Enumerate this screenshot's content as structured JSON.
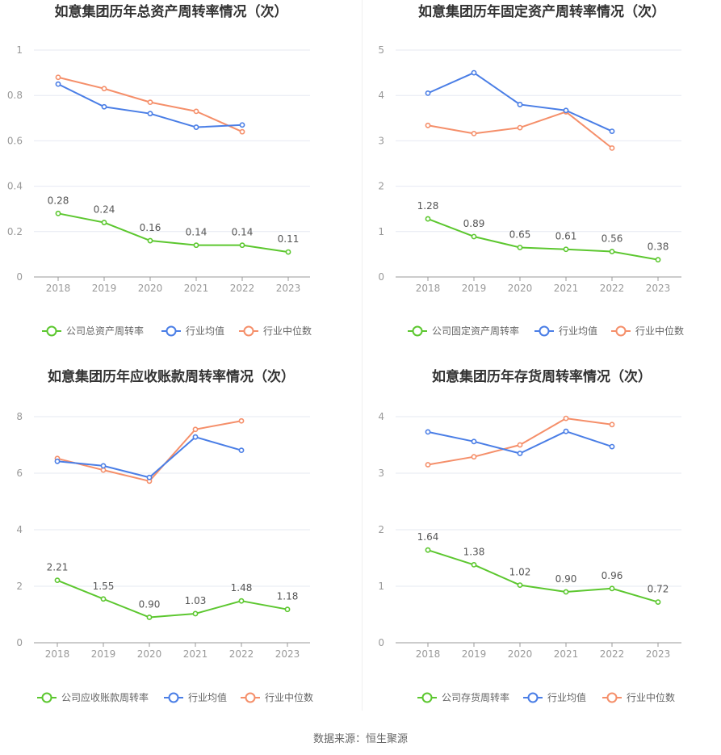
{
  "source_text": "数据来源：恒生聚源",
  "legend_common": {
    "avg": "行业均值",
    "median": "行业中位数"
  },
  "colors": {
    "company": "#5cc72f",
    "avg": "#4a7ee6",
    "median": "#f58f6a",
    "grid": "#e6e9f2",
    "axis": "#999999"
  },
  "chart_data": [
    {
      "type": "line",
      "title": "如意集团历年总资产周转率情况（次）",
      "x": [
        "2018",
        "2019",
        "2020",
        "2021",
        "2022",
        "2023"
      ],
      "ylim": [
        0,
        1
      ],
      "yticks": [
        "0",
        "0.2",
        "0.4",
        "0.6",
        "0.8",
        "1"
      ],
      "series": [
        {
          "name": "公司总资产周转率",
          "values": [
            0.28,
            0.24,
            0.16,
            0.14,
            0.14,
            0.11
          ],
          "labels": [
            "0.28",
            "0.24",
            "0.16",
            "0.14",
            "0.14",
            "0.11"
          ]
        },
        {
          "name": "行业均值",
          "values": [
            0.85,
            0.75,
            0.72,
            0.66,
            0.67,
            null
          ]
        },
        {
          "name": "行业中位数",
          "values": [
            0.88,
            0.83,
            0.77,
            0.73,
            0.64,
            null
          ]
        }
      ]
    },
    {
      "type": "line",
      "title": "如意集团历年固定资产周转率情况（次）",
      "x": [
        "2018",
        "2019",
        "2020",
        "2021",
        "2022",
        "2023"
      ],
      "ylim": [
        0,
        5
      ],
      "yticks": [
        "0",
        "1",
        "2",
        "3",
        "4",
        "5"
      ],
      "series": [
        {
          "name": "公司固定资产周转率",
          "values": [
            1.28,
            0.89,
            0.65,
            0.61,
            0.56,
            0.38
          ],
          "labels": [
            "1.28",
            "0.89",
            "0.65",
            "0.61",
            "0.56",
            "0.38"
          ]
        },
        {
          "name": "行业均值",
          "values": [
            4.05,
            4.5,
            3.8,
            3.67,
            3.21,
            null
          ]
        },
        {
          "name": "行业中位数",
          "values": [
            3.34,
            3.16,
            3.29,
            3.64,
            2.84,
            null
          ]
        }
      ]
    },
    {
      "type": "line",
      "title": "如意集团历年应收账款周转率情况（次）",
      "x": [
        "2018",
        "2019",
        "2020",
        "2021",
        "2022",
        "2023"
      ],
      "ylim": [
        0,
        8
      ],
      "yticks": [
        "0",
        "2",
        "4",
        "6",
        "8"
      ],
      "series": [
        {
          "name": "公司应收账款周转率",
          "values": [
            2.21,
            1.55,
            0.9,
            1.03,
            1.48,
            1.18
          ],
          "labels": [
            "2.21",
            "1.55",
            "0.90",
            "1.03",
            "1.48",
            "1.18"
          ]
        },
        {
          "name": "行业均值",
          "values": [
            6.42,
            6.26,
            5.85,
            7.28,
            6.81,
            null
          ]
        },
        {
          "name": "行业中位数",
          "values": [
            6.52,
            6.11,
            5.72,
            7.55,
            7.85,
            null
          ]
        }
      ]
    },
    {
      "type": "line",
      "title": "如意集团历年存货周转率情况（次）",
      "x": [
        "2018",
        "2019",
        "2020",
        "2021",
        "2022",
        "2023"
      ],
      "ylim": [
        0,
        4
      ],
      "yticks": [
        "0",
        "1",
        "2",
        "3",
        "4"
      ],
      "series": [
        {
          "name": "公司存货周转率",
          "values": [
            1.64,
            1.38,
            1.02,
            0.9,
            0.96,
            0.72
          ],
          "labels": [
            "1.64",
            "1.38",
            "1.02",
            "0.90",
            "0.96",
            "0.72"
          ]
        },
        {
          "name": "行业均值",
          "values": [
            3.73,
            3.56,
            3.35,
            3.74,
            3.47,
            null
          ]
        },
        {
          "name": "行业中位数",
          "values": [
            3.15,
            3.29,
            3.5,
            3.97,
            3.86,
            null
          ]
        }
      ]
    }
  ]
}
